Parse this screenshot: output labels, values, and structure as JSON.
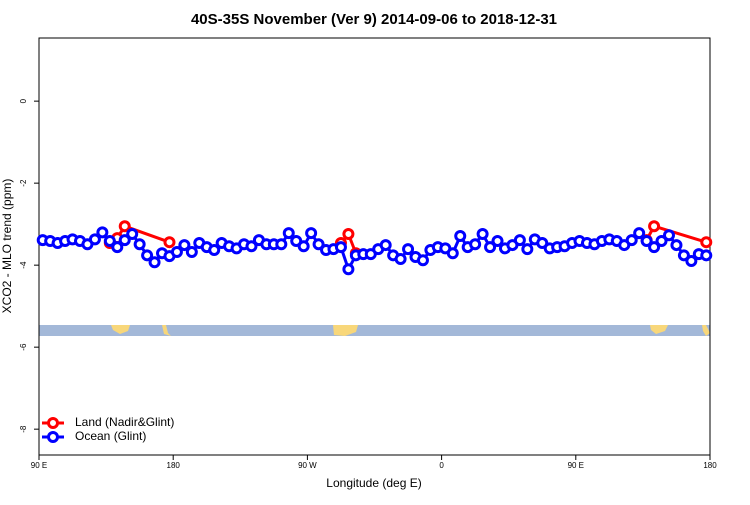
{
  "chart_data": {
    "type": "line",
    "title": "40S-35S November (Ver 9)   2014-09-06 to 2018-12-31",
    "x_label": "Longitude (deg E)",
    "y_label": "XCO2 - MLO trend (ppm)",
    "xlim": [
      90,
      540
    ],
    "ylim": [
      1.54,
      -8.63
    ],
    "xticks": [
      {
        "value": 90,
        "label": "90 E"
      },
      {
        "value": 180,
        "label": "180"
      },
      {
        "value": 270,
        "label": "90 W"
      },
      {
        "value": 360,
        "label": "0"
      },
      {
        "value": 450,
        "label": "90 E"
      },
      {
        "value": 540,
        "label": "180"
      }
    ],
    "yticks": [
      0,
      -2,
      -4,
      -6,
      -8
    ],
    "legend": "bottomleft",
    "series": [
      {
        "name": "Land (Nadir&Glint)",
        "color": "#ff0000",
        "x": [
          137.5,
          142.5,
          147.5,
          177.5,
          232.5,
          292.5,
          297.5,
          302.5,
          402.5,
          497.5,
          502.5,
          537.5
        ],
        "values": [
          -3.46,
          -3.34,
          -3.05,
          -3.44,
          null,
          -3.46,
          -3.24,
          -3.71,
          null,
          -3.39,
          -3.05,
          -3.44
        ]
      },
      {
        "name": "Ocean (Glint)",
        "color": "#0000ff",
        "x": [
          92.5,
          97.5,
          102.5,
          107.5,
          112.5,
          117.5,
          122.5,
          127.5,
          132.5,
          137.5,
          142.5,
          147.5,
          152.5,
          157.5,
          162.5,
          167.5,
          172.5,
          177.5,
          182.5,
          187.5,
          192.5,
          197.5,
          202.5,
          207.5,
          212.5,
          217.5,
          222.5,
          227.5,
          232.5,
          237.5,
          242.5,
          247.5,
          252.5,
          257.5,
          262.5,
          267.5,
          272.5,
          277.5,
          282.5,
          287.5,
          292.5,
          297.5,
          302.5,
          307.5,
          312.5,
          317.5,
          322.5,
          327.5,
          332.5,
          337.5,
          342.5,
          347.5,
          352.5,
          357.5,
          362.5,
          367.5,
          372.5,
          377.5,
          382.5,
          387.5,
          392.5,
          397.5,
          402.5,
          407.5,
          412.5,
          417.5,
          422.5,
          427.5,
          432.5,
          437.5,
          442.5,
          447.5,
          452.5,
          457.5,
          462.5,
          467.5,
          472.5,
          477.5,
          482.5,
          487.5,
          492.5,
          497.5,
          502.5,
          507.5,
          512.5,
          517.5,
          522.5,
          527.5,
          532.5,
          537.5
        ],
        "values": [
          -3.39,
          -3.41,
          -3.46,
          -3.41,
          -3.37,
          -3.41,
          -3.49,
          -3.37,
          -3.2,
          -3.41,
          -3.56,
          -3.39,
          -3.24,
          -3.49,
          -3.76,
          -3.93,
          -3.71,
          -3.78,
          -3.68,
          -3.51,
          -3.68,
          -3.46,
          -3.56,
          -3.63,
          -3.46,
          -3.54,
          -3.59,
          -3.49,
          -3.54,
          -3.39,
          -3.49,
          -3.49,
          -3.49,
          -3.22,
          -3.41,
          -3.54,
          -3.22,
          -3.49,
          -3.63,
          -3.61,
          -3.56,
          -4.1,
          -3.76,
          -3.73,
          -3.73,
          -3.61,
          -3.51,
          -3.76,
          -3.85,
          -3.61,
          -3.8,
          -3.88,
          -3.63,
          -3.56,
          -3.59,
          -3.71,
          -3.29,
          -3.56,
          -3.49,
          -3.24,
          -3.56,
          -3.41,
          -3.59,
          -3.51,
          -3.39,
          -3.61,
          -3.37,
          -3.46,
          -3.59,
          -3.56,
          -3.54,
          -3.46,
          -3.41,
          -3.46,
          -3.49,
          -3.41,
          -3.37,
          -3.41,
          -3.51,
          -3.39,
          -3.22,
          -3.41,
          -3.56,
          -3.41,
          -3.27,
          -3.51,
          -3.76,
          -3.9,
          -3.73,
          -3.76
        ]
      }
    ]
  }
}
